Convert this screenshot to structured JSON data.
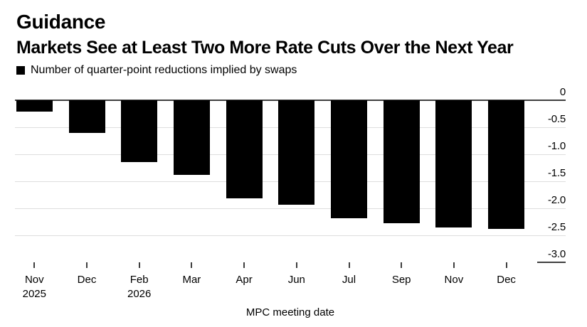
{
  "header": {
    "eyebrow": "Guidance",
    "headline": "Markets See at Least Two More Rate Cuts Over the Next Year"
  },
  "legend": {
    "label": "Number of quarter-point reductions implied by swaps",
    "swatch_color": "#000000"
  },
  "chart_data": {
    "type": "bar",
    "title": "Guidance",
    "subtitle": "Markets See at Least Two More Rate Cuts Over the Next Year",
    "series_name": "Number of quarter-point reductions implied by swaps",
    "categories": [
      {
        "month": "Nov",
        "year": "2025"
      },
      {
        "month": "Dec",
        "year": ""
      },
      {
        "month": "Feb",
        "year": "2026"
      },
      {
        "month": "Mar",
        "year": ""
      },
      {
        "month": "Apr",
        "year": ""
      },
      {
        "month": "Jun",
        "year": ""
      },
      {
        "month": "Jul",
        "year": ""
      },
      {
        "month": "Sep",
        "year": ""
      },
      {
        "month": "Nov",
        "year": ""
      },
      {
        "month": "Dec",
        "year": ""
      }
    ],
    "values": [
      -0.21,
      -0.61,
      -1.15,
      -1.38,
      -1.81,
      -1.94,
      -2.18,
      -2.27,
      -2.36,
      -2.38
    ],
    "xlabel": "MPC meeting date",
    "ylabel": "",
    "ylim": [
      -3.0,
      0
    ],
    "yticks": [
      0,
      -0.5,
      -1.0,
      -1.5,
      -2.0,
      -2.5,
      -3.0
    ],
    "ytick_labels": [
      "0",
      "-0.5",
      "-1.0",
      "-1.5",
      "-2.0",
      "-2.5",
      "-3.0"
    ],
    "grid": "horizontal-light",
    "legend_position": "top-left",
    "bar_color": "#000000",
    "grid_color": "#dedede",
    "axis_color": "#3f3f3f",
    "text_color": "#000000",
    "background_color": "#ffffff"
  }
}
